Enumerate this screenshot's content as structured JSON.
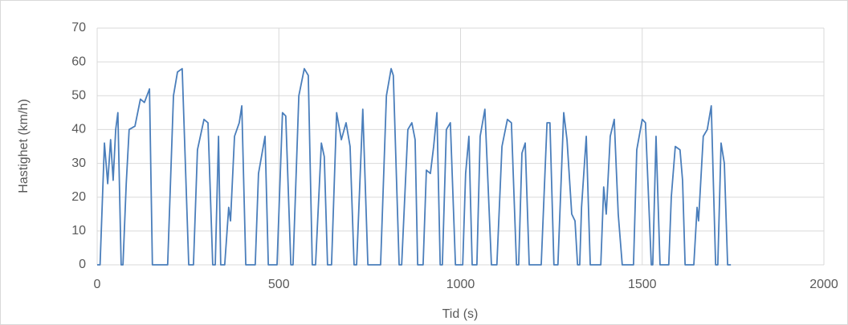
{
  "chart_data": {
    "type": "line",
    "x_label": "Tid (s)",
    "y_label": "Hastighet (km/h)",
    "color": "#4a7ebb",
    "grid": true,
    "xlim": [
      0,
      2000
    ],
    "xticks": [
      0,
      500,
      1000,
      1500,
      2000
    ],
    "ylim": [
      0,
      70
    ],
    "yticks": [
      0,
      10,
      20,
      30,
      40,
      50,
      60,
      70
    ],
    "x": [
      0,
      8,
      20,
      29,
      37,
      44,
      51,
      57,
      66,
      71,
      80,
      88,
      104,
      119,
      130,
      144,
      152,
      194,
      210,
      221,
      234,
      252,
      265,
      276,
      294,
      305,
      318,
      325,
      334,
      340,
      351,
      362,
      367,
      378,
      391,
      398,
      409,
      435,
      444,
      462,
      471,
      495,
      510,
      519,
      533,
      539,
      555,
      570,
      581,
      592,
      601,
      617,
      625,
      634,
      645,
      659,
      672,
      685,
      696,
      707,
      714,
      731,
      745,
      780,
      796,
      809,
      815,
      831,
      838,
      855,
      866,
      875,
      882,
      897,
      906,
      917,
      926,
      935,
      944,
      950,
      961,
      972,
      986,
      1006,
      1014,
      1023,
      1032,
      1045,
      1054,
      1067,
      1085,
      1100,
      1114,
      1129,
      1140,
      1154,
      1160,
      1169,
      1178,
      1189,
      1222,
      1238,
      1246,
      1257,
      1268,
      1284,
      1293,
      1306,
      1315,
      1322,
      1328,
      1333,
      1346,
      1357,
      1386,
      1394,
      1401,
      1412,
      1423,
      1428,
      1434,
      1445,
      1476,
      1485,
      1500,
      1509,
      1525,
      1529,
      1538,
      1549,
      1573,
      1580,
      1591,
      1604,
      1611,
      1618,
      1642,
      1651,
      1655,
      1668,
      1679,
      1690,
      1702,
      1708,
      1717,
      1726,
      1735,
      1744
    ],
    "values": [
      0,
      0,
      36,
      24,
      37,
      25,
      40,
      45,
      0,
      0,
      24,
      40,
      41,
      49,
      48,
      52,
      0,
      0,
      50,
      57,
      58,
      0,
      0,
      34,
      43,
      42,
      0,
      0,
      38,
      0,
      0,
      17,
      13,
      38,
      42,
      47,
      0,
      0,
      27,
      38,
      0,
      0,
      45,
      44,
      0,
      0,
      50,
      58,
      56,
      0,
      0,
      36,
      32,
      0,
      0,
      45,
      37,
      42,
      35,
      0,
      0,
      46,
      0,
      0,
      50,
      58,
      56,
      0,
      0,
      40,
      42,
      37,
      0,
      0,
      28,
      27,
      35,
      45,
      0,
      0,
      40,
      42,
      0,
      0,
      27,
      38,
      0,
      0,
      38,
      46,
      0,
      0,
      35,
      43,
      42,
      0,
      0,
      33,
      36,
      0,
      0,
      42,
      42,
      0,
      0,
      45,
      37,
      15,
      13,
      0,
      0,
      17,
      38,
      0,
      0,
      23,
      15,
      38,
      43,
      30,
      15,
      0,
      0,
      34,
      43,
      42,
      0,
      0,
      38,
      0,
      0,
      20,
      35,
      34,
      25,
      0,
      0,
      17,
      13,
      38,
      40,
      47,
      0,
      0,
      36,
      30,
      0,
      0
    ]
  }
}
